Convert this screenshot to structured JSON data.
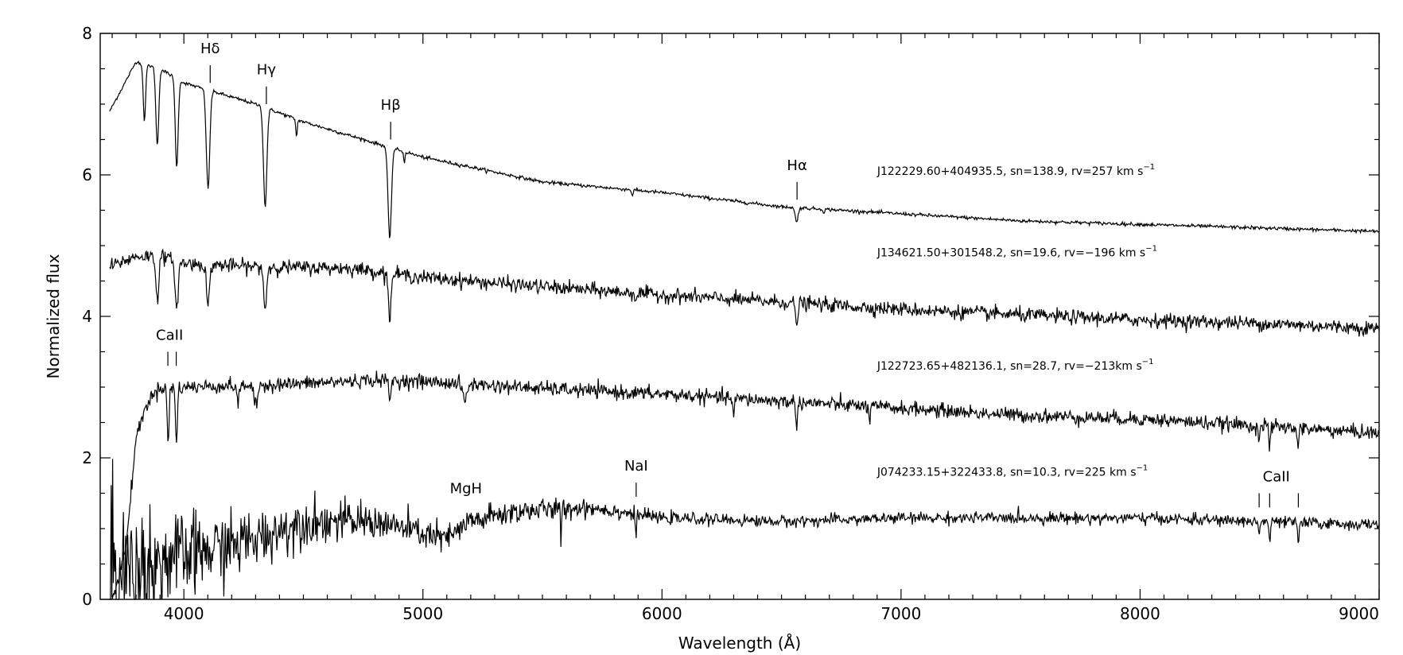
{
  "chart_data": {
    "type": "line",
    "title": "",
    "xlabel": "Wavelength (Å)",
    "ylabel": "Normalized flux",
    "xlim": [
      3650,
      9000
    ],
    "ylim": [
      0,
      8
    ],
    "xticks": [
      4000,
      5000,
      6000,
      7000,
      8000,
      9000
    ],
    "yticks": [
      0,
      2,
      4,
      6,
      8
    ],
    "xtick_labels": [
      "4000",
      "5000",
      "6000",
      "7000",
      "8000",
      "9000"
    ],
    "ytick_labels": [
      "0",
      "2",
      "4",
      "6",
      "8"
    ],
    "grid": false,
    "legend": "none",
    "series": [
      {
        "label": "J122229.60+404935.5, sn=138.9, rv=257 km s",
        "label_sup": "−1",
        "continuum": [
          [
            3690,
            6.9
          ],
          [
            3800,
            7.6
          ],
          [
            3900,
            7.5
          ],
          [
            4000,
            7.3
          ],
          [
            4150,
            7.15
          ],
          [
            4300,
            7.0
          ],
          [
            4500,
            6.75
          ],
          [
            4800,
            6.45
          ],
          [
            5000,
            6.25
          ],
          [
            5500,
            5.9
          ],
          [
            6000,
            5.75
          ],
          [
            6500,
            5.55
          ],
          [
            7000,
            5.45
          ],
          [
            7500,
            5.35
          ],
          [
            8000,
            5.3
          ],
          [
            8500,
            5.25
          ],
          [
            9000,
            5.2
          ]
        ],
        "noise": 0.012,
        "absorption_lines": [
          [
            3835,
            0.8,
            5
          ],
          [
            3889,
            1.1,
            6
          ],
          [
            3970,
            1.25,
            6
          ],
          [
            4101,
            1.4,
            7
          ],
          [
            4340,
            1.4,
            7
          ],
          [
            4471,
            0.25,
            3
          ],
          [
            4861,
            1.3,
            7
          ],
          [
            4922,
            0.15,
            3
          ],
          [
            5876,
            0.08,
            3
          ],
          [
            6563,
            0.2,
            6
          ],
          [
            6678,
            0.05,
            3
          ]
        ]
      },
      {
        "label": "J134621.50+301548.2, sn=19.6, rv=−196 km s",
        "label_sup": "−1",
        "continuum": [
          [
            3690,
            4.7
          ],
          [
            3800,
            4.85
          ],
          [
            3900,
            4.85
          ],
          [
            4000,
            4.75
          ],
          [
            4300,
            4.7
          ],
          [
            4700,
            4.68
          ],
          [
            5000,
            4.55
          ],
          [
            5500,
            4.42
          ],
          [
            6000,
            4.3
          ],
          [
            6500,
            4.2
          ],
          [
            7000,
            4.1
          ],
          [
            7500,
            4.02
          ],
          [
            8000,
            3.95
          ],
          [
            8500,
            3.9
          ],
          [
            9000,
            3.83
          ]
        ],
        "noise": 0.05,
        "absorption_lines": [
          [
            3889,
            0.6,
            6
          ],
          [
            3970,
            0.7,
            6
          ],
          [
            4101,
            0.6,
            6
          ],
          [
            4340,
            0.6,
            6
          ],
          [
            4861,
            0.6,
            6
          ],
          [
            5890,
            0.1,
            3
          ],
          [
            6563,
            0.3,
            5
          ]
        ]
      },
      {
        "label": "J122723.65+482136.1, sn=28.7, rv=−213km s",
        "label_sup": "−1",
        "continuum": [
          [
            3690,
            -0.2
          ],
          [
            3760,
            0.8
          ],
          [
            3800,
            2.3
          ],
          [
            3850,
            2.8
          ],
          [
            3900,
            3.0
          ],
          [
            4000,
            3.0
          ],
          [
            4200,
            3.02
          ],
          [
            4500,
            3.05
          ],
          [
            4800,
            3.1
          ],
          [
            5000,
            3.08
          ],
          [
            5500,
            2.98
          ],
          [
            6000,
            2.9
          ],
          [
            6500,
            2.8
          ],
          [
            7000,
            2.7
          ],
          [
            7500,
            2.6
          ],
          [
            8000,
            2.55
          ],
          [
            8500,
            2.45
          ],
          [
            9000,
            2.35
          ]
        ],
        "noise": 0.05,
        "absorption_lines": [
          [
            3934,
            0.8,
            4
          ],
          [
            3969,
            0.8,
            4
          ],
          [
            4227,
            0.3,
            4
          ],
          [
            4300,
            0.3,
            8
          ],
          [
            4861,
            0.3,
            4
          ],
          [
            5175,
            0.25,
            8
          ],
          [
            6300,
            0.3,
            3
          ],
          [
            6563,
            0.3,
            4
          ],
          [
            6870,
            0.2,
            3
          ],
          [
            8498,
            0.2,
            3
          ],
          [
            8542,
            0.3,
            3
          ],
          [
            8662,
            0.3,
            3
          ]
        ]
      },
      {
        "label": "J074233.15+322433.8, sn=10.3, rv=225 km s",
        "label_sup": "−1",
        "continuum": [
          [
            3690,
            0.2
          ],
          [
            3800,
            0.45
          ],
          [
            4000,
            0.6
          ],
          [
            4300,
            0.85
          ],
          [
            4500,
            1.1
          ],
          [
            4800,
            1.1
          ],
          [
            5100,
            0.85
          ],
          [
            5200,
            1.1
          ],
          [
            5400,
            1.25
          ],
          [
            5700,
            1.3
          ],
          [
            6000,
            1.15
          ],
          [
            6500,
            1.1
          ],
          [
            7000,
            1.15
          ],
          [
            7500,
            1.15
          ],
          [
            8000,
            1.15
          ],
          [
            8500,
            1.1
          ],
          [
            9000,
            1.05
          ]
        ],
        "noise_profile": [
          [
            3690,
            0.9
          ],
          [
            3800,
            0.45
          ],
          [
            4000,
            0.3
          ],
          [
            4300,
            0.2
          ],
          [
            4800,
            0.12
          ],
          [
            5500,
            0.08
          ],
          [
            6000,
            0.04
          ],
          [
            9000,
            0.04
          ]
        ],
        "absorption_lines": [
          [
            5577,
            0.55,
            2
          ],
          [
            5890,
            0.3,
            3
          ],
          [
            8498,
            0.2,
            3
          ],
          [
            8542,
            0.3,
            3
          ],
          [
            8662,
            0.3,
            3
          ]
        ]
      }
    ],
    "annotations": [
      {
        "text": "Hδ",
        "x": 4110,
        "tick_bottom": 7.3,
        "tick_top": 7.55,
        "label_y": 7.72
      },
      {
        "text": "Hγ",
        "x": 4345,
        "tick_bottom": 7.0,
        "tick_top": 7.25,
        "label_y": 7.42
      },
      {
        "text": "Hβ",
        "x": 4865,
        "tick_bottom": 6.5,
        "tick_top": 6.75,
        "label_y": 6.92
      },
      {
        "text": "Hα",
        "x": 6565,
        "tick_bottom": 5.65,
        "tick_top": 5.9,
        "label_y": 6.07
      },
      {
        "text": "CaII",
        "x": 3940,
        "ticks": [
          3933,
          3968
        ],
        "tick_bottom": 3.3,
        "tick_top": 3.5,
        "label_y": 3.67
      },
      {
        "text": "MgH",
        "x": 5180,
        "label_y": 1.5
      },
      {
        "text": "NaI",
        "x": 5892,
        "ticks": [
          5892
        ],
        "tick_bottom": 1.45,
        "tick_top": 1.65,
        "label_y": 1.82
      },
      {
        "text": "CaII",
        "x": 8570,
        "ticks": [
          8498,
          8542,
          8662
        ],
        "tick_bottom": 1.3,
        "tick_top": 1.5,
        "label_y": 1.67
      }
    ]
  }
}
